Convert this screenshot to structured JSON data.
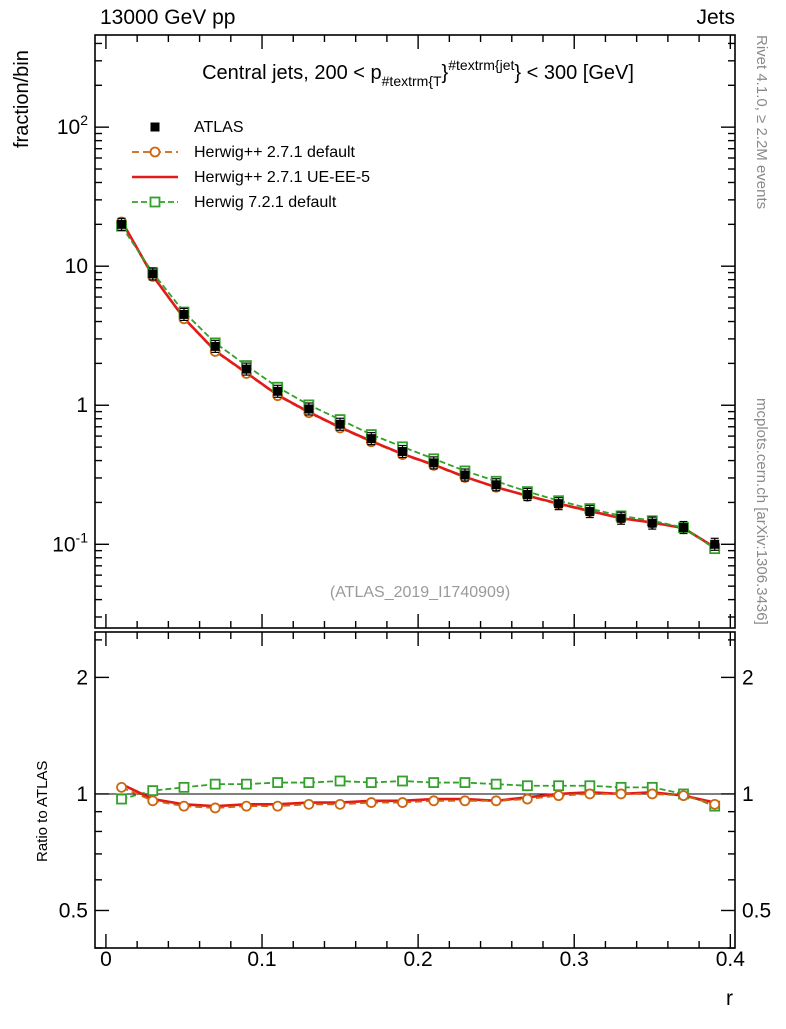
{
  "header": {
    "left": "13000 GeV pp",
    "right": "Jets"
  },
  "side_texts": {
    "top_right": "Rivet 4.1.0, ≥ 2.2M events",
    "bottom_right": "mcplots.cern.ch [arXiv:1306.3436]"
  },
  "watermark": "(ATLAS_2019_I1740909)",
  "panel": {
    "title_parts": [
      {
        "t": "Central jets, 200 < p",
        "p": "base"
      },
      {
        "t": "#textrm{T",
        "p": "sub"
      },
      {
        "t": "}",
        "p": "base"
      },
      {
        "t": "#textrm{jet",
        "p": "sup"
      },
      {
        "t": "} < 300 [GeV]",
        "p": "base"
      }
    ]
  },
  "axes": {
    "y_label_main": "fraction/bin",
    "y_label_ratio": "Ratio to ATLAS",
    "x_label": "r",
    "x_major": [
      0,
      0.1,
      0.2,
      0.3,
      0.4
    ],
    "x_tick_labels": [
      "0",
      "0.1",
      "0.2",
      "0.3",
      "0.4"
    ],
    "x_minor_step": 0.02,
    "y_ticks_main": [
      {
        "v": 100,
        "base": "10",
        "exp": "2"
      },
      {
        "v": 10,
        "base": "10",
        "exp": ""
      },
      {
        "v": 1,
        "base": "1",
        "exp": ""
      },
      {
        "v": 0.1,
        "base": "10",
        "exp": "-1"
      }
    ],
    "ratio_major": [
      0.5,
      1,
      2
    ],
    "ratio_tick_labels": [
      "0.5",
      "1",
      "2"
    ],
    "ratio_minor": [
      0.4,
      0.6,
      0.7,
      0.8,
      0.9,
      2.5
    ]
  },
  "legend": [
    {
      "label": "ATLAS",
      "style": "filled-square",
      "color": "#000000"
    },
    {
      "label": "Herwig++ 2.7.1 default",
      "style": "dashed-line-open-circle",
      "color": "#cc6611"
    },
    {
      "label": "Herwig++ 2.7.1 UE-EE-5",
      "style": "solid-line",
      "color": "#e31a1a"
    },
    {
      "label": "Herwig 7.2.1 default",
      "style": "dashed-line-open-square",
      "color": "#33a02c"
    }
  ],
  "chart_data": [
    {
      "type": "line",
      "title": "Central jets, 200 < pT_jet < 300 [GeV]",
      "xlabel": "r",
      "ylabel": "fraction/bin",
      "yscale": "log",
      "xlim": [
        -0.007,
        0.403
      ],
      "ylim": [
        0.025,
        460
      ],
      "x": [
        0.01,
        0.03,
        0.05,
        0.07,
        0.09,
        0.11,
        0.13,
        0.15,
        0.17,
        0.19,
        0.21,
        0.23,
        0.25,
        0.27,
        0.29,
        0.31,
        0.33,
        0.35,
        0.37,
        0.39
      ],
      "series": [
        {
          "name": "ATLAS",
          "values": [
            20.0,
            8.8,
            4.5,
            2.65,
            1.82,
            1.26,
            0.94,
            0.73,
            0.575,
            0.465,
            0.385,
            0.315,
            0.268,
            0.228,
            0.196,
            0.172,
            0.154,
            0.142,
            0.132,
            0.1
          ]
        }
      ],
      "note": "MC curves in this panel equal ATLAS values multiplied by the ratio series below"
    },
    {
      "type": "line",
      "ylabel": "Ratio to ATLAS",
      "yscale": "log",
      "xlim": [
        -0.007,
        0.403
      ],
      "ylim": [
        0.4,
        2.62
      ],
      "x": [
        0.01,
        0.03,
        0.05,
        0.07,
        0.09,
        0.11,
        0.13,
        0.15,
        0.17,
        0.19,
        0.21,
        0.23,
        0.25,
        0.27,
        0.29,
        0.31,
        0.33,
        0.35,
        0.37,
        0.39
      ],
      "series": [
        {
          "name": "Herwig++ 2.7.1 default",
          "values": [
            1.04,
            0.96,
            0.93,
            0.92,
            0.93,
            0.93,
            0.94,
            0.94,
            0.95,
            0.95,
            0.96,
            0.96,
            0.96,
            0.97,
            0.99,
            1.0,
            1.0,
            1.0,
            0.99,
            0.94
          ]
        },
        {
          "name": "Herwig++ 2.7.1 UE-EE-5",
          "values": [
            1.06,
            0.97,
            0.94,
            0.93,
            0.94,
            0.94,
            0.95,
            0.95,
            0.96,
            0.96,
            0.97,
            0.97,
            0.96,
            0.98,
            1.0,
            1.01,
            1.0,
            1.01,
            0.99,
            0.95
          ]
        },
        {
          "name": "Herwig 7.2.1 default",
          "values": [
            0.97,
            1.02,
            1.04,
            1.06,
            1.06,
            1.07,
            1.07,
            1.08,
            1.07,
            1.08,
            1.07,
            1.07,
            1.06,
            1.05,
            1.05,
            1.05,
            1.04,
            1.04,
            1.0,
            0.93
          ]
        }
      ]
    }
  ]
}
